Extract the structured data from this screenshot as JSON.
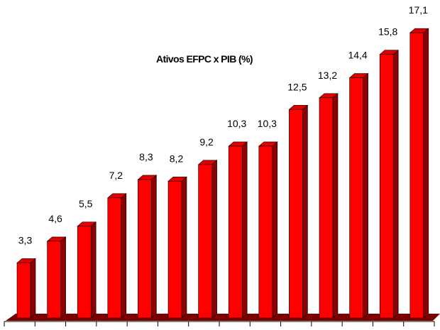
{
  "chart_data": {
    "type": "bar",
    "title": "Ativos EFPC x PIB (%)",
    "categories": [
      "",
      "",
      "",
      "",
      "",
      "",
      "",
      "",
      "",
      "",
      "",
      "",
      "",
      ""
    ],
    "values": [
      3.3,
      4.6,
      5.5,
      7.2,
      8.3,
      8.2,
      9.2,
      10.3,
      10.3,
      12.5,
      13.2,
      14.4,
      15.8,
      17.1
    ],
    "data_labels": [
      "3,3",
      "4,6",
      "5,5",
      "7,2",
      "8,3",
      "8,2",
      "9,2",
      "10,3",
      "10,3",
      "12,5",
      "13,2",
      "14,4",
      "15,8",
      "17,1"
    ],
    "ylim": [
      0,
      17.1
    ],
    "grid": false,
    "legend": "none",
    "bar_style": "3d",
    "colors": {
      "bar_front": "#ff0000",
      "bar_side": "#8b0000",
      "bar_top": "#e00000",
      "floor": "#7a0000",
      "axis": "#000000"
    }
  }
}
